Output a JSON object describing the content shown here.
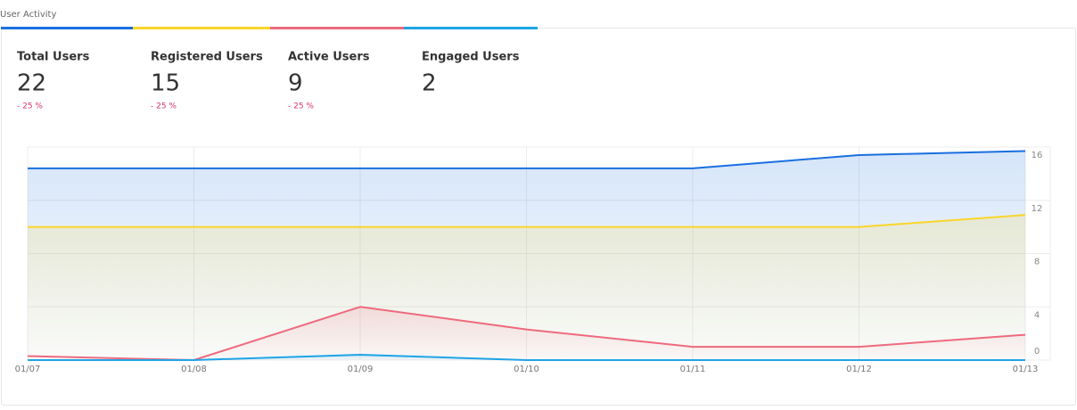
{
  "header": {
    "title": "User Activity"
  },
  "stats": [
    {
      "label": "Total Users",
      "value": 22,
      "change": "- 25 %"
    },
    {
      "label": "Registered Users",
      "value": 15,
      "change": "- 25 %"
    },
    {
      "label": "Active Users",
      "value": 9,
      "change": "- 25 %"
    },
    {
      "label": "Engaged Users",
      "value": 2
    }
  ],
  "chart_data": {
    "type": "line",
    "categories": [
      "01/07",
      "01/08",
      "01/09",
      "01/10",
      "01/11",
      "01/12",
      "01/13"
    ],
    "series": [
      {
        "name": "Total Users",
        "color": "#1a6fe0",
        "values": [
          14.4,
          14.4,
          14.4,
          14.4,
          14.4,
          15.4,
          15.7
        ]
      },
      {
        "name": "Registered Users",
        "color": "#fbd52a",
        "values": [
          10,
          10,
          10,
          10,
          10,
          10,
          10.9
        ]
      },
      {
        "name": "Active Users",
        "color": "#ee6a7e",
        "values": [
          0.3,
          0,
          4,
          2.3,
          1,
          1,
          1.9
        ]
      },
      {
        "name": "Engaged Users",
        "color": "#1ea4e6",
        "values": [
          0,
          0,
          0.4,
          0,
          0,
          0,
          0
        ]
      }
    ],
    "ylim": [
      0,
      16
    ],
    "yticks": [
      0,
      4,
      8,
      12,
      16
    ],
    "grid": true,
    "area": true
  }
}
